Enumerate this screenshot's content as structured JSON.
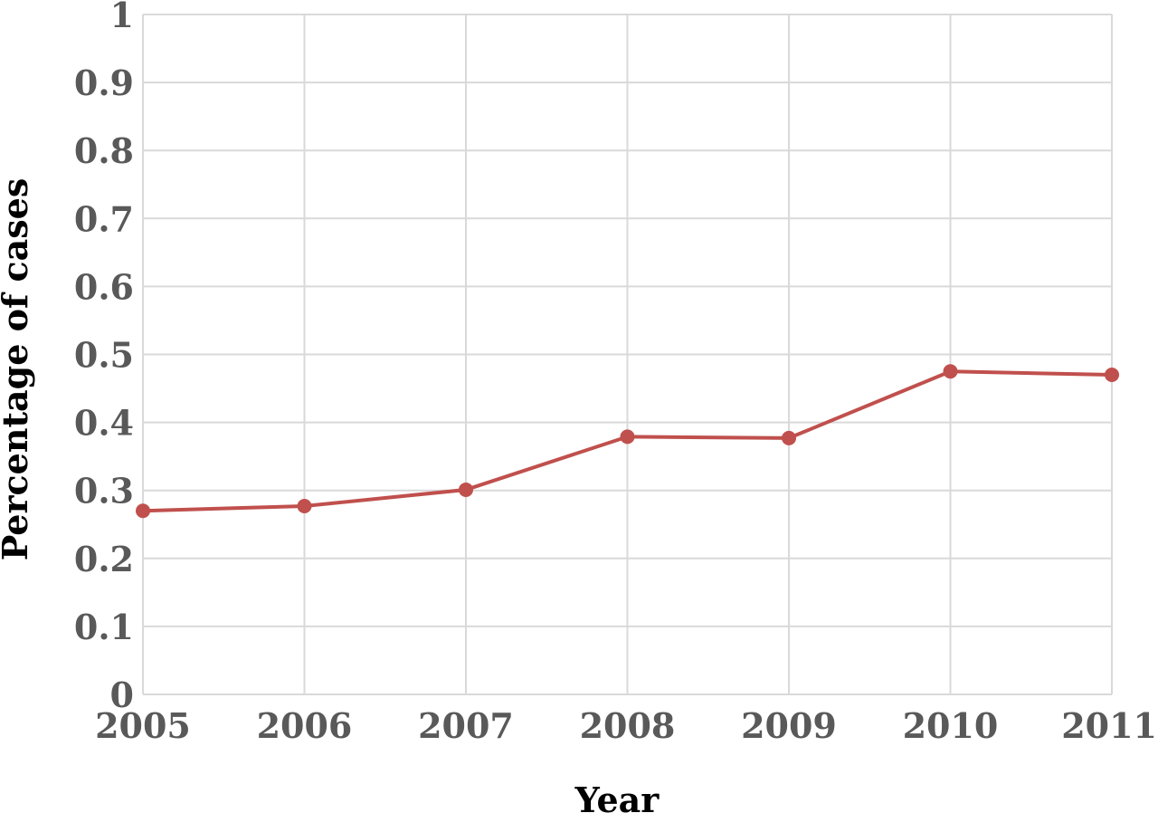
{
  "chart_data": {
    "type": "line",
    "title": "",
    "xlabel": "Year",
    "ylabel": "Percentage of cases",
    "x": [
      "2005",
      "2006",
      "2007",
      "2008",
      "2009",
      "2010",
      "2011"
    ],
    "series": [
      {
        "values": [
          0.27,
          0.277,
          0.301,
          0.379,
          0.377,
          0.475,
          0.47
        ],
        "color": "#c0504d"
      }
    ],
    "ylim": [
      0,
      1
    ],
    "yticks": [
      "0",
      "0.1",
      "0.2",
      "0.3",
      "0.4",
      "0.5",
      "0.6",
      "0.7",
      "0.8",
      "0.9",
      "1"
    ],
    "grid": true,
    "legend": "none",
    "colors": {
      "tick_text": "#595959",
      "axis_title_text": "#000000",
      "grid": "#d9d9d9"
    }
  }
}
